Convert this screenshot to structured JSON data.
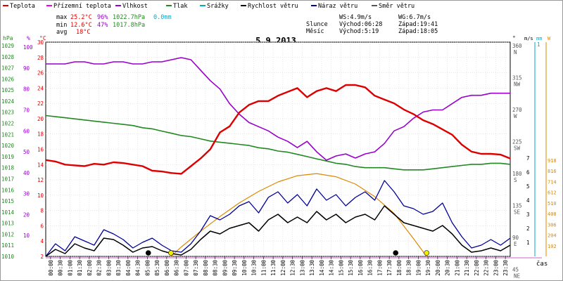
{
  "legend": [
    {
      "label": "Teplota",
      "color": "#dd0000"
    },
    {
      "label": "Přízemní teplota",
      "color": "#ee00ee"
    },
    {
      "label": "Vlhkost",
      "color": "#9900cc"
    },
    {
      "label": "Tlak",
      "color": "#228822"
    },
    {
      "label": "Srážky",
      "color": "#00aacc"
    },
    {
      "label": "Rychlost větru",
      "color": "#000000"
    },
    {
      "label": "Náraz větru",
      "color": "#000099"
    },
    {
      "label": "Směr větru",
      "color": "#555555"
    }
  ],
  "stats": {
    "max": {
      "label": "max",
      "temp": "25.2°C",
      "hum": "96%",
      "press": "1022.7hPa",
      "rain": "0.0mm"
    },
    "min": {
      "label": "min",
      "temp": "12.6°C",
      "hum": "47%",
      "press": "1017.8hPa"
    },
    "avg": {
      "label": "avg",
      "temp": "18°C"
    }
  },
  "wind_info": {
    "ws": "WS:4.9m/s",
    "wg": "WG:6.7m/s"
  },
  "astro": {
    "sun": {
      "label": "Slunce",
      "rise": "Východ:06:28",
      "set": "Západ:19:41"
    },
    "moon": {
      "label": "Měsíc",
      "rise": "Východ:5:19",
      "set": "Západ:18:05"
    }
  },
  "chart_data": {
    "type": "line",
    "title": "5.9.2013",
    "xlabel": "čas",
    "x_ticks": [
      "00:00",
      "00:30",
      "01:00",
      "01:30",
      "02:00",
      "02:30",
      "03:00",
      "03:30",
      "04:00",
      "04:30",
      "05:00",
      "05:30",
      "06:00",
      "06:30",
      "07:00",
      "07:30",
      "08:00",
      "08:30",
      "09:00",
      "09:30",
      "10:00",
      "10:30",
      "11:00",
      "11:30",
      "12:00",
      "12:30",
      "13:00",
      "13:30",
      "14:00",
      "14:30",
      "15:00",
      "15:30",
      "16:00",
      "16:30",
      "17:00",
      "17:30",
      "18:00",
      "18:30",
      "19:00",
      "19:30",
      "20:00",
      "20:30",
      "21:00",
      "21:30",
      "22:00",
      "22:30",
      "23:00",
      "23:30"
    ],
    "axes": {
      "pressure": {
        "unit": "hPa",
        "color": "#228822",
        "ticks": [
          "1029",
          "1028",
          "1027",
          "1026",
          "1025",
          "1024",
          "1023",
          "1022",
          "1021",
          "1020",
          "1019",
          "1018",
          "1017",
          "1016",
          "1015",
          "1014",
          "1013",
          "1012",
          "1011",
          "1010"
        ]
      },
      "humidity": {
        "unit": "%",
        "color": "#9900cc",
        "ticks": [
          "100",
          "90",
          "80",
          "70",
          "60",
          "50",
          "40",
          "30",
          "20",
          "10"
        ]
      },
      "temperature": {
        "unit": "°C",
        "color": "#dd0000",
        "ticks": [
          "30",
          "28",
          "26",
          "24",
          "22",
          "20",
          "18",
          "16",
          "14",
          "12",
          "10",
          "8",
          "6",
          "4",
          "2"
        ]
      },
      "direction": {
        "unit": "°",
        "ticks": [
          {
            "deg": "360",
            "dir": "N"
          },
          {
            "deg": "315",
            "dir": "NW"
          },
          {
            "deg": "270",
            "dir": "W"
          },
          {
            "deg": "225",
            "dir": "SW"
          },
          {
            "deg": "180",
            "dir": "S"
          },
          {
            "deg": "135",
            "dir": "SE"
          },
          {
            "deg": "90",
            "dir": "E"
          },
          {
            "deg": "45",
            "dir": "NE"
          }
        ]
      },
      "wind": {
        "unit": "m/s",
        "ticks": [
          "7",
          "6",
          "5",
          "4",
          "3",
          "2",
          "1"
        ]
      },
      "rain": {
        "unit": "mm",
        "color": "#00aacc",
        "ticks": [
          "1"
        ]
      },
      "solar": {
        "unit": "W",
        "color": "#dd8800",
        "ticks": [
          "918",
          "816",
          "714",
          "612",
          "510",
          "408",
          "306",
          "204",
          "102"
        ]
      }
    },
    "series": {
      "temperature": {
        "name": "Teplota",
        "color": "#dd0000",
        "unit": "°C",
        "x": [
          0,
          0.5,
          1,
          1.5,
          2,
          2.5,
          3,
          3.5,
          4,
          4.5,
          5,
          5.5,
          6,
          6.5,
          7,
          7.5,
          8,
          8.5,
          9,
          9.5,
          10,
          10.5,
          11,
          11.5,
          12,
          12.5,
          13,
          13.5,
          14,
          14.5,
          15,
          15.5,
          16,
          16.5,
          17,
          17.5,
          18,
          18.5,
          19,
          19.5,
          20,
          20.5,
          21,
          21.5,
          22,
          22.5,
          23,
          23.5,
          24
        ],
        "y": [
          14.6,
          14.4,
          14.0,
          13.9,
          13.8,
          14.1,
          14.0,
          14.3,
          14.2,
          14.0,
          13.8,
          13.2,
          13.1,
          12.9,
          12.8,
          13.8,
          14.8,
          16.0,
          18.2,
          19.0,
          20.8,
          21.8,
          22.3,
          22.3,
          23.0,
          23.5,
          24.0,
          22.8,
          23.6,
          24.0,
          23.6,
          24.4,
          24.4,
          24.1,
          23.0,
          22.5,
          22.0,
          21.2,
          20.6,
          19.8,
          19.3,
          18.6,
          17.9,
          16.6,
          15.7,
          15.4,
          15.4,
          15.3,
          14.8
        ]
      },
      "humidity": {
        "name": "Vlhkost",
        "color": "#9900cc",
        "unit": "%",
        "x": [
          0,
          0.5,
          1,
          1.5,
          2,
          2.5,
          3,
          3.5,
          4,
          4.5,
          5,
          5.5,
          6,
          6.5,
          7,
          7.5,
          8,
          8.5,
          9,
          9.5,
          10,
          10.5,
          11,
          11.5,
          12,
          12.5,
          13,
          13.5,
          14,
          14.5,
          15,
          15.5,
          16,
          16.5,
          17,
          17.5,
          18,
          18.5,
          19,
          19.5,
          20,
          20.5,
          21,
          21.5,
          22,
          22.5,
          23,
          23.5,
          24
        ],
        "y": [
          92,
          92,
          92,
          93,
          93,
          92,
          92,
          93,
          93,
          92,
          92,
          93,
          93,
          94,
          95,
          94,
          89,
          84,
          80,
          73,
          68,
          64,
          62,
          60,
          57,
          55,
          52,
          55,
          50,
          46,
          48,
          49,
          47,
          49,
          50,
          54,
          60,
          62,
          66,
          69,
          70,
          70,
          73,
          76,
          77,
          77,
          78,
          78,
          78
        ]
      },
      "pressure": {
        "name": "Tlak",
        "color": "#228822",
        "unit": "hPa",
        "x": [
          0,
          0.5,
          1,
          1.5,
          2,
          2.5,
          3,
          3.5,
          4,
          4.5,
          5,
          5.5,
          6,
          6.5,
          7,
          7.5,
          8,
          8.5,
          9,
          9.5,
          10,
          10.5,
          11,
          11.5,
          12,
          12.5,
          13,
          13.5,
          14,
          14.5,
          15,
          15.5,
          16,
          16.5,
          17,
          17.5,
          18,
          18.5,
          19,
          19.5,
          20,
          20.5,
          21,
          21.5,
          22,
          22.5,
          23,
          23.5,
          24
        ],
        "y": [
          1022.7,
          1022.6,
          1022.5,
          1022.4,
          1022.3,
          1022.2,
          1022.1,
          1022.0,
          1021.9,
          1021.8,
          1021.6,
          1021.5,
          1021.3,
          1021.1,
          1020.9,
          1020.8,
          1020.6,
          1020.4,
          1020.3,
          1020.2,
          1020.1,
          1020.0,
          1019.8,
          1019.7,
          1019.5,
          1019.4,
          1019.2,
          1019.0,
          1018.8,
          1018.6,
          1018.4,
          1018.3,
          1018.1,
          1018.0,
          1018.0,
          1018.0,
          1017.9,
          1017.8,
          1017.8,
          1017.8,
          1017.9,
          1018.0,
          1018.1,
          1018.2,
          1018.3,
          1018.3,
          1018.4,
          1018.4,
          1018.3
        ]
      },
      "wind_speed": {
        "name": "Rychlost větru",
        "color": "#000000",
        "unit": "m/s",
        "x": [
          0,
          0.5,
          1,
          1.5,
          2,
          2.5,
          3,
          3.5,
          4,
          4.5,
          5,
          5.5,
          6,
          6.5,
          7,
          7.5,
          8,
          8.5,
          9,
          9.5,
          10,
          10.5,
          11,
          11.5,
          12,
          12.5,
          13,
          13.5,
          14,
          14.5,
          15,
          15.5,
          16,
          16.5,
          17,
          17.5,
          18,
          18.5,
          19,
          19.5,
          20,
          20.5,
          21,
          21.5,
          22,
          22.5,
          23,
          23.5,
          24
        ],
        "y": [
          0,
          0.5,
          0.2,
          0.9,
          0.6,
          0.4,
          1.3,
          1.2,
          0.8,
          0.3,
          0.6,
          0.7,
          0.4,
          0.2,
          0.1,
          0.5,
          1.2,
          1.8,
          1.6,
          2.0,
          2.2,
          2.4,
          1.8,
          2.6,
          3.0,
          2.4,
          2.8,
          2.4,
          3.2,
          2.6,
          3.0,
          2.4,
          2.8,
          3.0,
          2.6,
          3.6,
          3.0,
          2.4,
          2.2,
          2.0,
          1.8,
          2.2,
          1.6,
          0.8,
          0.3,
          0.4,
          0.6,
          0.4,
          0.8
        ]
      },
      "wind_gust": {
        "name": "Náraz větru",
        "color": "#000099",
        "unit": "m/s",
        "x": [
          0,
          0.5,
          1,
          1.5,
          2,
          2.5,
          3,
          3.5,
          4,
          4.5,
          5,
          5.5,
          6,
          6.5,
          7,
          7.5,
          8,
          8.5,
          9,
          9.5,
          10,
          10.5,
          11,
          11.5,
          12,
          12.5,
          13,
          13.5,
          14,
          14.5,
          15,
          15.5,
          16,
          16.5,
          17,
          17.5,
          18,
          18.5,
          19,
          19.5,
          20,
          20.5,
          21,
          21.5,
          22,
          22.5,
          23,
          23.5,
          24
        ],
        "y": [
          0,
          0.9,
          0.4,
          1.4,
          1.1,
          0.8,
          1.9,
          1.6,
          1.2,
          0.6,
          1.0,
          1.3,
          0.8,
          0.4,
          0.3,
          0.9,
          1.8,
          2.9,
          2.6,
          3.0,
          3.6,
          3.9,
          3.1,
          4.2,
          4.6,
          3.8,
          4.4,
          3.6,
          4.8,
          4.0,
          4.4,
          3.6,
          4.2,
          4.6,
          4.0,
          5.4,
          4.6,
          3.6,
          3.4,
          3.0,
          3.2,
          3.8,
          2.4,
          1.4,
          0.6,
          0.8,
          1.2,
          0.8,
          1.3
        ]
      },
      "solar": {
        "name": "Solar",
        "color": "#dd8800",
        "unit": "W",
        "x": [
          6.47,
          7,
          8,
          9,
          10,
          11,
          12,
          13,
          14,
          15,
          16,
          17,
          18,
          19,
          19.68
        ],
        "y": [
          0,
          90,
          240,
          380,
          510,
          620,
          710,
          770,
          790,
          760,
          690,
          570,
          410,
          170,
          0
        ]
      }
    },
    "markers": [
      {
        "type": "dot",
        "color": "#000000",
        "x": 5.3
      },
      {
        "type": "dot",
        "color": "#eeee00",
        "x": 6.47
      },
      {
        "type": "dot",
        "color": "#000000",
        "x": 18.08
      },
      {
        "type": "dot",
        "color": "#eeee00",
        "x": 19.68
      }
    ]
  }
}
